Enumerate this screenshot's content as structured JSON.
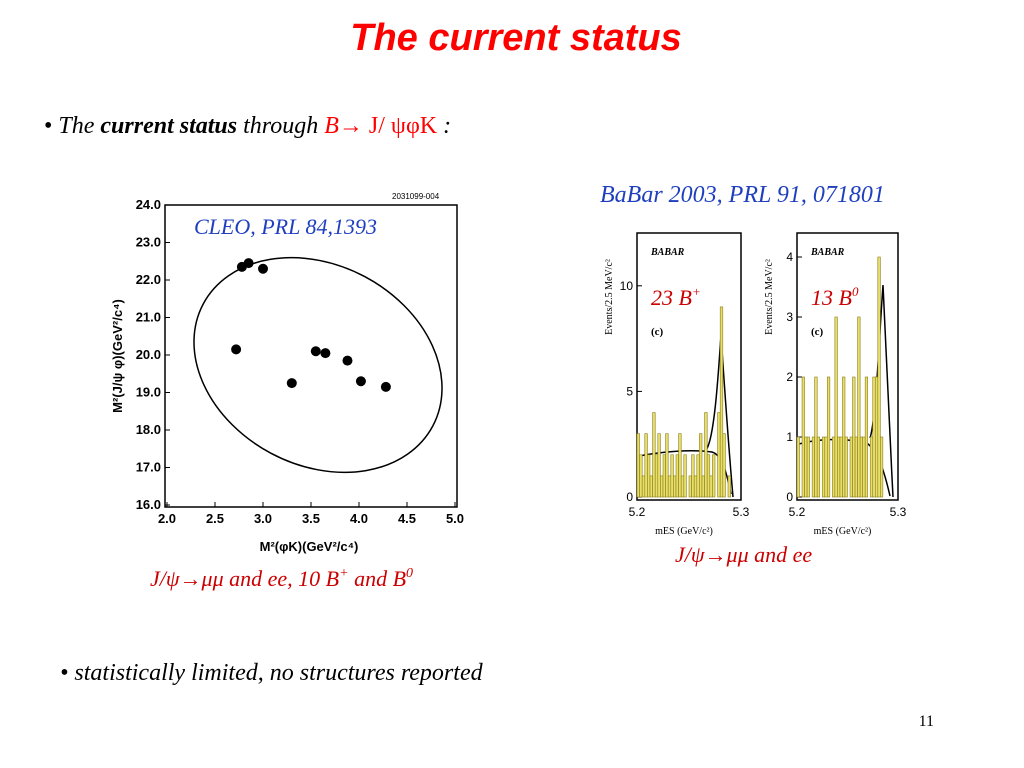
{
  "title": "The current status",
  "bullet1": [
    "The",
    "current status",
    "through",
    "B",
    "→",
    "J/ ψφK",
    ":"
  ],
  "babar_ref": "BaBar 2003, PRL 91, 071801",
  "caption_left": [
    "J/ψ→μμ and ee, 10 B",
    "+",
    " and B",
    "0"
  ],
  "caption_right": "J/ψ→μμ and ee",
  "bullet2": "statistically limited, no structures reported",
  "page_number": "11",
  "chart_data": [
    {
      "type": "scatter",
      "annotation": "CLEO, PRL 84,1393",
      "code": "2031099-004",
      "x_label": "M²(φK)(GeV²/c⁴)",
      "y_label": "M²(J/ψ φ)(GeV²/c⁴)",
      "x": [
        2.72,
        2.78,
        2.85,
        3.0,
        3.3,
        3.55,
        3.65,
        3.88,
        4.02,
        4.28
      ],
      "values": [
        20.15,
        22.35,
        22.45,
        22.3,
        19.25,
        20.1,
        20.05,
        19.85,
        19.3,
        19.15
      ],
      "color": "#000000",
      "xlim": [
        2.0,
        5.0
      ],
      "xticks": [
        {
          "value": 2,
          "label": "2.0"
        },
        2.5,
        {
          "value": 3,
          "label": "3.0"
        },
        3.5,
        {
          "value": 4,
          "label": "4.0"
        },
        4.5,
        {
          "value": 5,
          "label": "5.0"
        }
      ],
      "ylim": [
        16.0,
        24.0
      ],
      "yticks": [
        {
          "value": 16,
          "label": "16.0"
        },
        {
          "value": 17,
          "label": "17.0"
        },
        {
          "value": 18,
          "label": "18.0"
        },
        {
          "value": 19,
          "label": "19.0"
        },
        {
          "value": 20,
          "label": "20.0"
        },
        {
          "value": 21,
          "label": "21.0"
        },
        {
          "value": 22,
          "label": "22.0"
        },
        {
          "value": 23,
          "label": "23.0"
        },
        {
          "value": 24,
          "label": "24.0"
        }
      ]
    },
    {
      "type": "histogram",
      "label_top": "BABAR",
      "panel": "(c)",
      "count_label": [
        "23 B",
        "+"
      ],
      "x_label": "mES (GeV/c²)",
      "y_label": "Events/2.5 MeV/c²",
      "bins": [
        5.2,
        5.2025,
        5.205,
        5.2075,
        5.21,
        5.2125,
        5.215,
        5.2175,
        5.22,
        5.2225,
        5.225,
        5.2275,
        5.23,
        5.2325,
        5.235,
        5.2375,
        5.24,
        5.2425,
        5.245,
        5.2475,
        5.25,
        5.2525,
        5.255,
        5.2575,
        5.26,
        5.2625,
        5.265,
        5.2675,
        5.27,
        5.2725,
        5.275,
        5.2775,
        5.28,
        5.2825,
        5.285,
        5.2875,
        5.29
      ],
      "values": [
        3,
        2,
        1,
        3,
        2,
        1,
        4,
        2,
        3,
        1,
        2,
        3,
        1,
        2,
        1,
        2,
        3,
        1,
        2,
        0,
        1,
        2,
        1,
        2,
        3,
        1,
        4,
        2,
        1,
        2,
        0,
        4,
        9,
        3,
        0,
        1
      ],
      "color": "#e8df6a",
      "xlim": [
        5.2,
        5.3
      ],
      "xticks": [
        5.2,
        5.3
      ],
      "ylim": [
        0,
        12.5
      ],
      "yticks": [
        0,
        5,
        10
      ]
    },
    {
      "type": "histogram",
      "label_top": "BABAR",
      "panel": "(c)",
      "count_label": [
        "13 B",
        "0"
      ],
      "x_label": "mES (GeV/c²)",
      "y_label": "Events/2.5 MeV/c²",
      "bins": [
        5.2,
        5.2025,
        5.205,
        5.2075,
        5.21,
        5.2125,
        5.215,
        5.2175,
        5.22,
        5.2225,
        5.225,
        5.2275,
        5.23,
        5.2325,
        5.235,
        5.2375,
        5.24,
        5.2425,
        5.245,
        5.2475,
        5.25,
        5.2525,
        5.255,
        5.2575,
        5.26,
        5.2625,
        5.265,
        5.2675,
        5.27,
        5.2725,
        5.275,
        5.2775,
        5.28,
        5.2825,
        5.285,
        5.2875,
        5.29
      ],
      "values": [
        1,
        0,
        2,
        1,
        1,
        0,
        1,
        2,
        1,
        0,
        1,
        1,
        2,
        0,
        1,
        3,
        1,
        1,
        2,
        1,
        0,
        1,
        2,
        1,
        3,
        1,
        1,
        2,
        0,
        1,
        2,
        2,
        4,
        1,
        0,
        0
      ],
      "color": "#e8df6a",
      "xlim": [
        5.2,
        5.3
      ],
      "xticks": [
        5.2,
        5.3
      ],
      "ylim": [
        0,
        4.4
      ],
      "yticks": [
        0,
        1,
        2,
        3,
        4
      ]
    }
  ]
}
